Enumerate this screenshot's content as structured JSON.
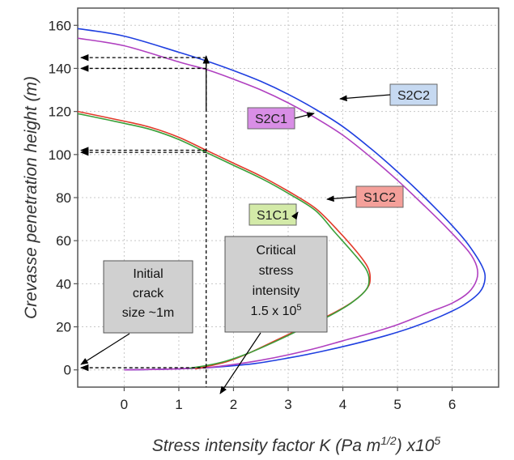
{
  "chart_data": {
    "type": "line",
    "xlabel": "Stress intensity factor K (Pa m",
    "xlabel_sup": "1/2",
    "xlabel_tail": ") x10",
    "xlabel_tail_sup": "5",
    "ylabel": "Crevasse penetration height (m)",
    "xlim": [
      -0.85,
      6.85
    ],
    "ylim": [
      -8,
      168
    ],
    "xticks": [
      "0",
      "1",
      "2",
      "3",
      "4",
      "5",
      "6"
    ],
    "xtick_values": [
      0,
      1,
      2,
      3,
      4,
      5,
      6
    ],
    "yticks": [
      "0",
      "20",
      "40",
      "60",
      "80",
      "100",
      "120",
      "140",
      "160"
    ],
    "ytick_values": [
      0,
      20,
      40,
      60,
      80,
      100,
      120,
      140,
      160
    ],
    "series": [
      {
        "name": "S2C2",
        "color": "#1f3fe0",
        "label_color": "#c6d9f1",
        "points": [
          [
            -0.85,
            158.5
          ],
          [
            0,
            155
          ],
          [
            1,
            147.5
          ],
          [
            1.5,
            143.5
          ],
          [
            2,
            139
          ],
          [
            2.5,
            134
          ],
          [
            3,
            128
          ],
          [
            3.5,
            121
          ],
          [
            4,
            113
          ],
          [
            4.5,
            103
          ],
          [
            5,
            92
          ],
          [
            5.5,
            80
          ],
          [
            6,
            67
          ],
          [
            6.3,
            58
          ],
          [
            6.55,
            48
          ],
          [
            6.6,
            42
          ],
          [
            6.5,
            36
          ],
          [
            6.2,
            30
          ],
          [
            5.8,
            25
          ],
          [
            5.3,
            20
          ],
          [
            4.8,
            16
          ],
          [
            4.2,
            12
          ],
          [
            3.6,
            8.5
          ],
          [
            3,
            5.5
          ],
          [
            2.4,
            3
          ],
          [
            1.8,
            1.5
          ],
          [
            1.5,
            1
          ],
          [
            1,
            0.5
          ],
          [
            0.5,
            0.2
          ],
          [
            0,
            0
          ]
        ]
      },
      {
        "name": "S2C1",
        "color": "#b040c0",
        "label_color": "#d98ee6",
        "points": [
          [
            -0.85,
            154
          ],
          [
            0,
            150.5
          ],
          [
            1,
            143
          ],
          [
            1.5,
            139.5
          ],
          [
            2,
            135
          ],
          [
            2.5,
            130
          ],
          [
            3,
            124
          ],
          [
            3.5,
            117
          ],
          [
            4,
            109
          ],
          [
            4.5,
            99
          ],
          [
            5,
            88
          ],
          [
            5.5,
            76
          ],
          [
            5.9,
            66
          ],
          [
            6.3,
            55
          ],
          [
            6.45,
            48
          ],
          [
            6.45,
            42
          ],
          [
            6.3,
            36
          ],
          [
            6,
            31
          ],
          [
            5.6,
            27
          ],
          [
            5,
            21
          ],
          [
            4.5,
            17
          ],
          [
            4,
            13.5
          ],
          [
            3.5,
            10
          ],
          [
            3,
            7
          ],
          [
            2.5,
            4.5
          ],
          [
            2,
            2.5
          ],
          [
            1.5,
            1
          ],
          [
            1,
            0.5
          ],
          [
            0.5,
            0.2
          ],
          [
            0,
            0
          ]
        ]
      },
      {
        "name": "S1C2",
        "color": "#e23a2a",
        "label_color": "#f4a09a",
        "points": [
          [
            -0.85,
            120
          ],
          [
            0,
            115.5
          ],
          [
            0.5,
            112.5
          ],
          [
            1,
            108
          ],
          [
            1.5,
            102
          ],
          [
            2,
            96
          ],
          [
            2.5,
            90
          ],
          [
            3,
            83
          ],
          [
            3.5,
            75
          ],
          [
            3.9,
            65
          ],
          [
            4.25,
            55
          ],
          [
            4.45,
            48
          ],
          [
            4.5,
            43
          ],
          [
            4.45,
            38
          ],
          [
            4.2,
            32
          ],
          [
            3.8,
            26
          ],
          [
            3.3,
            20
          ],
          [
            2.8,
            14
          ],
          [
            2.3,
            8
          ],
          [
            1.9,
            4
          ],
          [
            1.5,
            1.5
          ],
          [
            1.3,
            0.5
          ]
        ]
      },
      {
        "name": "S1C1",
        "color": "#3aa03a",
        "label_color": "#d3eaa8",
        "points": [
          [
            -0.85,
            119
          ],
          [
            0,
            114.5
          ],
          [
            0.5,
            111.5
          ],
          [
            1,
            107
          ],
          [
            1.5,
            101
          ],
          [
            2,
            95
          ],
          [
            2.5,
            89
          ],
          [
            3,
            82
          ],
          [
            3.5,
            74
          ],
          [
            3.85,
            64
          ],
          [
            4.2,
            54
          ],
          [
            4.42,
            47
          ],
          [
            4.48,
            42
          ],
          [
            4.42,
            37
          ],
          [
            4.15,
            31
          ],
          [
            3.75,
            25
          ],
          [
            3.25,
            19
          ],
          [
            2.75,
            13
          ],
          [
            2.25,
            7.5
          ],
          [
            1.85,
            4
          ],
          [
            1.5,
            2
          ],
          [
            1.2,
            0.8
          ]
        ]
      }
    ],
    "annotations": {
      "initial_crack": "Initial crack size ~1m",
      "initial_crack_lines": [
        "Initial",
        "crack",
        "size ~1m"
      ],
      "critical_lines": [
        "Critical",
        "stress",
        "intensity",
        "1.5 x 10"
      ],
      "critical_sup": "5",
      "critical_k": 1.5,
      "marked_heights": [
        145,
        140,
        102,
        101,
        1
      ]
    },
    "grid": true
  }
}
